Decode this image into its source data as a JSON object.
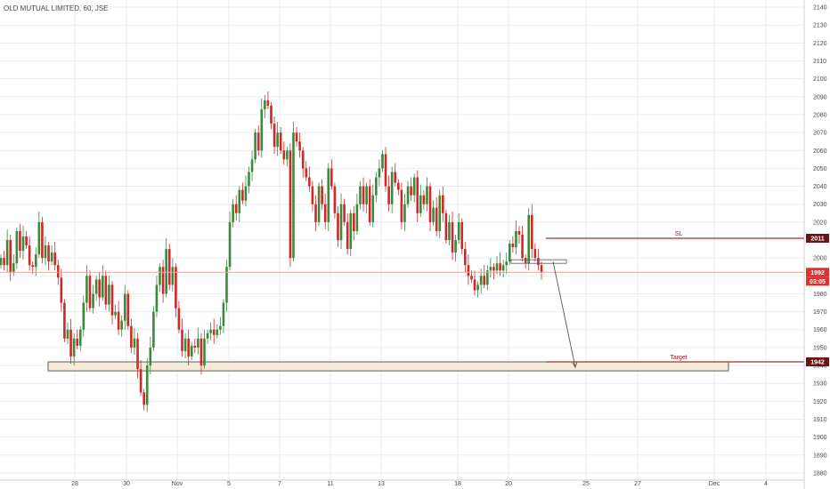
{
  "header": {
    "title": "OLD MUTUAL LIMITED, 60, JSE"
  },
  "colors": {
    "up": "#3a8a3a",
    "down": "#d02828",
    "grid": "#e9edf1",
    "price_line": "#f0a0a0",
    "sl_line": "#a03030",
    "target_line": "#3a3a3a",
    "target_zone": "#f7ecd8",
    "label_dark": "#6b1414",
    "label_red": "#e03030"
  },
  "chart_data": {
    "type": "candlestick",
    "title": "OLD MUTUAL LIMITED, 60, JSE",
    "ylim": [
      1876,
      2144
    ],
    "y_ticks": [
      1880,
      1890,
      1900,
      1910,
      1920,
      1930,
      1940,
      1950,
      1960,
      1970,
      1980,
      1990,
      2000,
      2010,
      2020,
      2030,
      2040,
      2050,
      2060,
      2070,
      2080,
      2090,
      2100,
      2110,
      2120,
      2130,
      2140
    ],
    "x_ticks": [
      "28",
      "30",
      "Nov",
      "5",
      "7",
      "11",
      "13",
      "18",
      "20",
      "25",
      "27",
      "Dec",
      "4"
    ],
    "candles_close": [
      2000,
      1996,
      2010,
      1992,
      1997,
      2015,
      2004,
      2012,
      2007,
      1996,
      1995,
      2002,
      2020,
      2000,
      2007,
      1998,
      2003,
      1996,
      1989,
      1975,
      1955,
      1960,
      1945,
      1955,
      1951,
      1960,
      1975,
      1990,
      1972,
      1980,
      1988,
      1978,
      1990,
      1974,
      1985,
      1968,
      1970,
      1960,
      1965,
      1980,
      1962,
      1950,
      1955,
      1938,
      1925,
      1918,
      1940,
      1950,
      1970,
      1985,
      1995,
      1980,
      2005,
      1985,
      1995,
      1972,
      1960,
      1948,
      1955,
      1945,
      1951,
      1950,
      1955,
      1940,
      1955,
      1958,
      1960,
      1957,
      1960,
      1962,
      1975,
      1995,
      2020,
      2030,
      2025,
      2038,
      2032,
      2040,
      2048,
      2055,
      2070,
      2060,
      2083,
      2088,
      2085,
      2075,
      2062,
      2070,
      2060,
      2055,
      2060,
      2000,
      2070,
      2065,
      2060,
      2050,
      2045,
      2040,
      2030,
      2020,
      2040,
      2030,
      2020,
      2050,
      2040,
      2025,
      2010,
      2030,
      2020,
      2005,
      2025,
      2015,
      2030,
      2040,
      2030,
      2040,
      2020,
      2035,
      2045,
      2050,
      2058,
      2040,
      2030,
      2048,
      2042,
      2038,
      2020,
      2030,
      2040,
      2035,
      2045,
      2025,
      2035,
      2030,
      2040,
      2020,
      2028,
      2015,
      2035,
      2025,
      2010,
      2020,
      2003,
      2010,
      2020,
      2005,
      1996,
      1990,
      1988,
      1982,
      1985,
      1990,
      1985,
      1993,
      1995,
      1993,
      1997,
      1993,
      1996,
      1998,
      2008,
      2006,
      2015,
      2013,
      2000,
      1997,
      2024,
      2005,
      2000,
      1996,
      1992
    ],
    "hlines": [
      {
        "name": "SL",
        "value": 2011
      },
      {
        "name": "current",
        "value": 1992
      },
      {
        "name": "Target",
        "value": 1942
      }
    ],
    "target_zone": [
      1937,
      1942
    ],
    "resistance_box": [
      1997,
      1999
    ],
    "price_labels": [
      {
        "value": 2011,
        "text": "2011"
      },
      {
        "value": 1992,
        "text": "1992"
      },
      {
        "value": 1942,
        "text": "1942"
      }
    ],
    "countdown": "03:05",
    "annotations": [
      {
        "text": "SL",
        "value": 2011
      },
      {
        "text": "Target",
        "value": 1942
      }
    ],
    "projection_arrow": {
      "from": 1998,
      "to": 1942
    },
    "grid": true
  }
}
